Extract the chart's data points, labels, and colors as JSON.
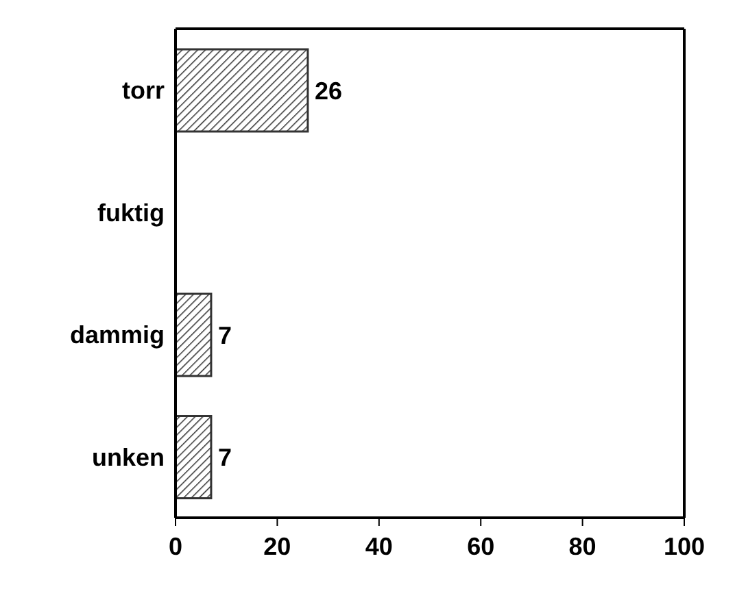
{
  "chart_data": {
    "type": "bar",
    "orientation": "horizontal",
    "categories": [
      "torr",
      "fuktig",
      "dammig",
      "unken"
    ],
    "values": [
      26,
      null,
      7,
      7
    ],
    "color": "#333333",
    "xlim": [
      0,
      100
    ],
    "xticks": [
      0,
      20,
      40,
      60,
      80,
      100
    ],
    "data_labels": true,
    "grid": false
  }
}
